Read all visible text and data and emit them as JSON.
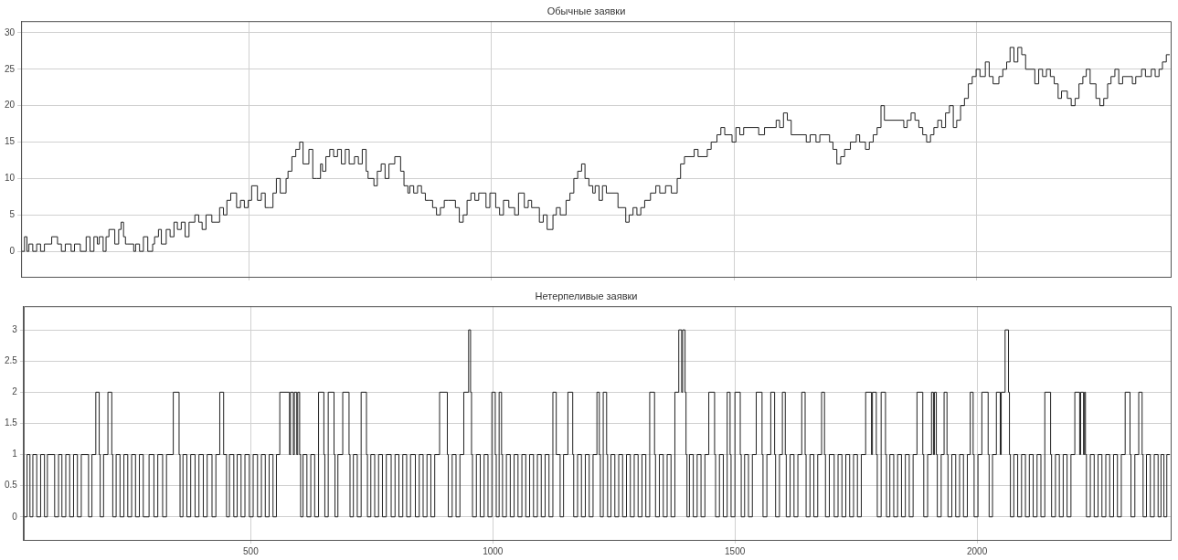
{
  "chart_data": [
    {
      "type": "step",
      "title": "Обычные заявки",
      "color": "#222222",
      "xlim": [
        31,
        2400
      ],
      "xticks": [
        500,
        1000,
        1500,
        2000
      ],
      "ylim": [
        -3.5,
        31.6
      ],
      "yticks": [
        0,
        5,
        10,
        15,
        20,
        25,
        30
      ],
      "grid": true,
      "tick_labels": "y",
      "x": [
        31,
        38,
        43,
        47,
        55,
        63,
        71,
        79,
        94,
        106,
        114,
        122,
        134,
        141,
        153,
        165,
        173,
        181,
        188,
        192,
        200,
        206,
        212,
        224,
        232,
        237,
        242,
        246,
        251,
        263,
        267,
        275,
        283,
        292,
        302,
        306,
        314,
        320,
        330,
        338,
        346,
        353,
        361,
        369,
        377,
        381,
        389,
        397,
        404,
        412,
        424,
        432,
        440,
        448,
        455,
        463,
        475,
        483,
        491,
        499,
        506,
        518,
        526,
        534,
        542,
        550,
        557,
        565,
        577,
        581,
        589,
        597,
        605,
        612,
        624,
        632,
        640,
        648,
        652,
        659,
        667,
        675,
        683,
        691,
        699,
        707,
        718,
        726,
        734,
        742,
        746,
        758,
        765,
        773,
        781,
        789,
        801,
        813,
        820,
        828,
        832,
        840,
        848,
        856,
        864,
        872,
        879,
        887,
        895,
        903,
        911,
        926,
        934,
        942,
        950,
        958,
        966,
        974,
        989,
        997,
        1009,
        1017,
        1025,
        1036,
        1048,
        1056,
        1068,
        1076,
        1083,
        1099,
        1107,
        1115,
        1127,
        1134,
        1142,
        1154,
        1162,
        1170,
        1178,
        1186,
        1193,
        1201,
        1209,
        1214,
        1222,
        1229,
        1237,
        1261,
        1277,
        1284,
        1292,
        1300,
        1308,
        1316,
        1328,
        1339,
        1347,
        1359,
        1371,
        1383,
        1390,
        1398,
        1418,
        1426,
        1445,
        1453,
        1465,
        1473,
        1481,
        1496,
        1504,
        1512,
        1520,
        1551,
        1563,
        1587,
        1594,
        1602,
        1610,
        1618,
        1649,
        1657,
        1669,
        1677,
        1697,
        1704,
        1712,
        1720,
        1728,
        1740,
        1752,
        1759,
        1771,
        1779,
        1787,
        1795,
        1803,
        1810,
        1850,
        1857,
        1865,
        1873,
        1881,
        1889,
        1897,
        1905,
        1912,
        1920,
        1928,
        1936,
        1944,
        1952,
        1959,
        1967,
        1975,
        1983,
        1991,
        1999,
        2007,
        2018,
        2026,
        2034,
        2046,
        2054,
        2062,
        2069,
        2077,
        2085,
        2093,
        2101,
        2120,
        2128,
        2136,
        2144,
        2152,
        2160,
        2168,
        2175,
        2187,
        2195,
        2203,
        2211,
        2219,
        2226,
        2234,
        2246,
        2254,
        2262,
        2270,
        2277,
        2285,
        2293,
        2301,
        2321,
        2328,
        2340,
        2348,
        2360,
        2368,
        2376,
        2383,
        2391,
        2398
      ],
      "values": [
        1,
        0,
        2,
        0,
        1,
        0,
        1,
        0,
        1,
        2,
        1,
        0,
        1,
        0,
        1,
        0,
        2,
        0,
        2,
        1,
        2,
        0,
        2,
        3,
        1,
        3,
        4,
        2,
        1,
        1,
        0,
        1,
        0,
        2,
        0,
        1,
        2,
        3,
        1,
        3,
        2,
        4,
        3,
        4,
        2,
        4,
        4,
        5,
        4,
        3,
        5,
        4,
        4,
        6,
        5,
        7,
        8,
        6,
        7,
        6,
        7,
        9,
        7,
        8,
        6,
        6,
        8,
        10,
        8,
        10,
        11,
        13,
        14,
        15,
        12,
        14,
        10,
        10,
        12,
        11,
        13,
        14,
        13,
        14,
        12,
        14,
        12,
        13,
        12,
        14,
        11,
        10,
        9,
        11,
        12,
        10,
        12,
        13,
        11,
        9,
        8,
        9,
        8,
        9,
        8,
        7,
        7,
        6,
        5,
        6,
        7,
        7,
        6,
        4,
        5,
        7,
        8,
        7,
        8,
        6,
        8,
        6,
        5,
        7,
        6,
        5,
        8,
        6,
        7,
        6,
        4,
        5,
        3,
        5,
        6,
        5,
        7,
        8,
        10,
        11,
        12,
        10,
        9,
        8,
        9,
        7,
        9,
        8,
        6,
        4,
        5,
        6,
        5,
        6,
        7,
        8,
        9,
        8,
        9,
        8,
        10,
        12,
        13,
        14,
        13,
        14,
        15,
        16,
        17,
        16,
        15,
        17,
        16,
        17,
        16,
        17,
        18,
        17,
        19,
        18,
        16,
        15,
        16,
        15,
        16,
        15,
        14,
        12,
        13,
        14,
        15,
        16,
        15,
        14,
        15,
        16,
        17,
        20,
        18,
        17,
        18,
        19,
        18,
        17,
        16,
        15,
        16,
        17,
        18,
        17,
        19,
        20,
        17,
        18,
        20,
        21,
        23,
        24,
        25,
        24,
        26,
        24,
        23,
        24,
        25,
        26,
        28,
        26,
        28,
        27,
        25,
        23,
        25,
        24,
        25,
        24,
        23,
        21,
        22,
        21,
        20,
        21,
        23,
        24,
        25,
        23,
        21,
        20,
        21,
        23,
        24,
        25,
        23,
        24,
        23,
        24,
        25,
        24,
        25,
        24,
        25,
        26,
        27
      ]
    },
    {
      "type": "step",
      "title": "Нетерпеливые заявки",
      "color": "#222222",
      "xlim": [
        31,
        2400
      ],
      "xticks": [
        500,
        1000,
        1500,
        2000
      ],
      "ylim": [
        -0.37,
        3.38
      ],
      "yticks": [
        0,
        0.5,
        1,
        1.5,
        2,
        2.5,
        3
      ],
      "grid": true,
      "x": [
        31,
        38,
        44,
        50,
        58,
        66,
        74,
        80,
        95,
        103,
        110,
        118,
        126,
        134,
        142,
        150,
        165,
        172,
        180,
        187,
        189,
        196,
        205,
        213,
        215,
        222,
        230,
        238,
        246,
        254,
        262,
        270,
        278,
        290,
        300,
        308,
        318,
        326,
        340,
        352,
        354,
        360,
        368,
        376,
        385,
        393,
        402,
        410,
        420,
        428,
        436,
        444,
        450,
        456,
        465,
        472,
        480,
        488,
        497,
        505,
        514,
        522,
        530,
        538,
        546,
        553,
        560,
        580,
        582,
        588,
        590,
        595,
        597,
        601,
        603,
        608,
        616,
        624,
        632,
        640,
        651,
        653,
        660,
        672,
        674,
        680,
        690,
        703,
        705,
        712,
        720,
        728,
        739,
        741,
        748,
        756,
        764,
        772,
        780,
        790,
        798,
        806,
        814,
        822,
        830,
        840,
        848,
        856,
        864,
        872,
        880,
        890,
        906,
        908,
        916,
        924,
        932,
        940,
        950,
        954,
        956,
        958,
        966,
        974,
        982,
        990,
        998,
        1005,
        1007,
        1013,
        1018,
        1020,
        1028,
        1036,
        1044,
        1052,
        1060,
        1068,
        1076,
        1084,
        1092,
        1100,
        1108,
        1116,
        1124,
        1131,
        1139,
        1146,
        1155,
        1165,
        1167,
        1175,
        1183,
        1191,
        1199,
        1207,
        1215,
        1220,
        1222,
        1228,
        1235,
        1237,
        1244,
        1252,
        1260,
        1268,
        1276,
        1284,
        1292,
        1300,
        1308,
        1316,
        1324,
        1334,
        1336,
        1344,
        1352,
        1360,
        1368,
        1376,
        1384,
        1390,
        1392,
        1397,
        1399,
        1401,
        1406,
        1414,
        1422,
        1430,
        1438,
        1446,
        1458,
        1460,
        1468,
        1476,
        1484,
        1490,
        1492,
        1500,
        1511,
        1513,
        1520,
        1528,
        1536,
        1544,
        1556,
        1558,
        1566,
        1574,
        1582,
        1584,
        1592,
        1598,
        1604,
        1606,
        1614,
        1622,
        1630,
        1638,
        1645,
        1647,
        1655,
        1663,
        1671,
        1679,
        1685,
        1687,
        1695,
        1705,
        1713,
        1721,
        1729,
        1737,
        1745,
        1753,
        1761,
        1770,
        1782,
        1784,
        1792,
        1794,
        1802,
        1811,
        1813,
        1820,
        1828,
        1836,
        1844,
        1852,
        1860,
        1868,
        1876,
        1888,
        1890,
        1898,
        1906,
        1910,
        1912,
        1916,
        1918,
        1926,
        1932,
        1938,
        1940,
        1948,
        1956,
        1964,
        1972,
        1980,
        1986,
        1992,
        1994,
        2002,
        2010,
        2023,
        2025,
        2032,
        2040,
        2048,
        2050,
        2058,
        2065,
        2067,
        2069,
        2076,
        2084,
        2092,
        2100,
        2108,
        2116,
        2124,
        2132,
        2140,
        2152,
        2154,
        2162,
        2170,
        2178,
        2186,
        2194,
        2202,
        2212,
        2214,
        2220,
        2222,
        2224,
        2226,
        2234,
        2242,
        2250,
        2258,
        2266,
        2274,
        2282,
        2290,
        2298,
        2306,
        2316,
        2318,
        2326,
        2334,
        2341,
        2343,
        2350,
        2358,
        2366,
        2374,
        2380,
        2386,
        2392,
        2398
      ],
      "values": [
        1,
        0,
        1,
        0,
        1,
        0,
        1,
        0,
        1,
        0,
        1,
        0,
        1,
        0,
        1,
        0,
        1,
        0,
        1,
        2,
        1,
        0,
        1,
        2,
        1,
        0,
        1,
        0,
        1,
        0,
        1,
        0,
        1,
        0,
        1,
        0,
        1,
        0,
        1,
        2,
        1,
        0,
        1,
        0,
        1,
        0,
        1,
        0,
        1,
        0,
        1,
        2,
        1,
        0,
        1,
        0,
        1,
        0,
        1,
        0,
        1,
        0,
        1,
        0,
        1,
        0,
        1,
        2,
        1,
        2,
        1,
        2,
        1,
        2,
        1,
        0,
        1,
        0,
        1,
        0,
        2,
        1,
        0,
        2,
        1,
        0,
        1,
        2,
        1,
        0,
        1,
        0,
        2,
        1,
        0,
        1,
        0,
        1,
        0,
        1,
        0,
        1,
        0,
        1,
        0,
        1,
        0,
        1,
        0,
        1,
        0,
        1,
        2,
        1,
        0,
        1,
        0,
        1,
        2,
        3,
        2,
        1,
        0,
        1,
        0,
        1,
        0,
        2,
        1,
        0,
        2,
        1,
        0,
        1,
        0,
        1,
        0,
        1,
        0,
        1,
        0,
        1,
        0,
        1,
        0,
        2,
        1,
        0,
        1,
        2,
        1,
        0,
        1,
        0,
        1,
        0,
        1,
        2,
        1,
        0,
        2,
        1,
        0,
        1,
        0,
        1,
        0,
        1,
        0,
        1,
        0,
        1,
        0,
        2,
        1,
        0,
        1,
        0,
        1,
        0,
        2,
        3,
        2,
        3,
        2,
        1,
        0,
        1,
        0,
        1,
        0,
        1,
        2,
        1,
        0,
        1,
        0,
        2,
        1,
        0,
        2,
        1,
        0,
        1,
        0,
        1,
        2,
        1,
        0,
        1,
        2,
        1,
        0,
        1,
        2,
        1,
        0,
        1,
        0,
        1,
        2,
        1,
        0,
        1,
        0,
        1,
        2,
        1,
        0,
        1,
        0,
        1,
        0,
        1,
        0,
        1,
        0,
        1,
        2,
        1,
        2,
        1,
        0,
        2,
        1,
        0,
        1,
        0,
        1,
        0,
        1,
        0,
        1,
        2,
        1,
        0,
        1,
        2,
        1,
        2,
        1,
        0,
        1,
        2,
        1,
        0,
        1,
        0,
        1,
        0,
        1,
        2,
        1,
        0,
        1,
        2,
        1,
        0,
        1,
        2,
        1,
        2,
        3,
        2,
        1,
        0,
        1,
        0,
        1,
        0,
        1,
        0,
        1,
        0,
        2,
        1,
        0,
        1,
        0,
        1,
        0,
        1,
        2,
        1,
        2,
        1,
        2,
        1,
        0,
        1,
        0,
        1,
        0,
        1,
        0,
        1,
        0,
        1,
        2,
        1,
        0,
        1,
        2,
        1,
        0,
        1,
        0,
        1,
        0,
        1,
        0,
        1
      ]
    }
  ]
}
